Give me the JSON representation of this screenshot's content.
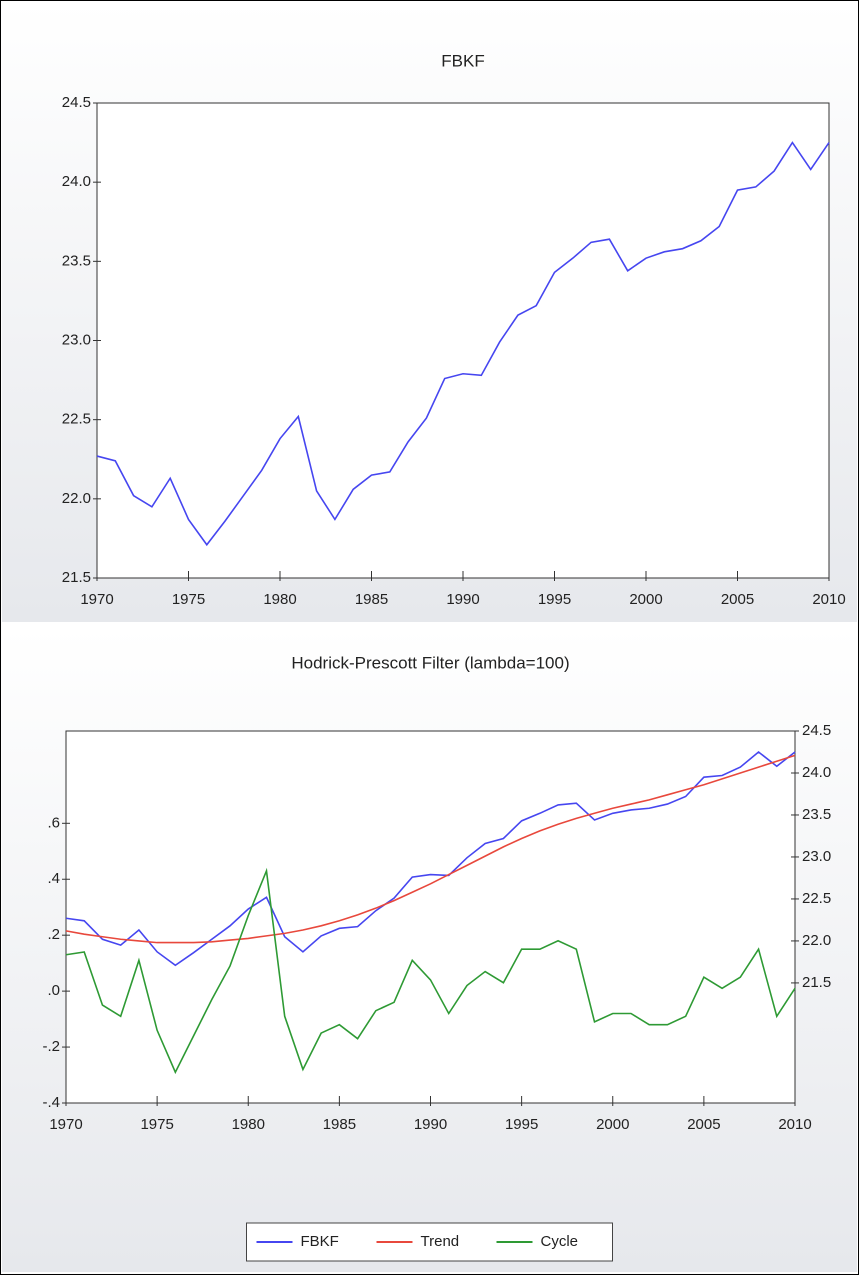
{
  "chart_data": [
    {
      "type": "line",
      "title": "FBKF",
      "x": [
        1970,
        1971,
        1972,
        1973,
        1974,
        1975,
        1976,
        1977,
        1978,
        1979,
        1980,
        1981,
        1982,
        1983,
        1984,
        1985,
        1986,
        1987,
        1988,
        1989,
        1990,
        1991,
        1992,
        1993,
        1994,
        1995,
        1996,
        1997,
        1998,
        1999,
        2000,
        2001,
        2002,
        2003,
        2004,
        2005,
        2006,
        2007,
        2008,
        2009,
        2010
      ],
      "series": [
        {
          "name": "FBKF",
          "color": "#4646f0",
          "values": [
            22.27,
            22.24,
            22.02,
            21.95,
            22.13,
            21.87,
            21.71,
            21.86,
            22.02,
            22.18,
            22.38,
            22.52,
            22.05,
            21.87,
            22.06,
            22.15,
            22.17,
            22.36,
            22.51,
            22.76,
            22.79,
            22.78,
            22.99,
            23.16,
            23.22,
            23.43,
            23.52,
            23.62,
            23.64,
            23.44,
            23.52,
            23.56,
            23.58,
            23.63,
            23.72,
            23.95,
            23.97,
            24.07,
            24.25,
            24.08,
            24.25
          ]
        }
      ],
      "xlim": [
        1970,
        2010
      ],
      "xticks": [
        1970,
        1975,
        1980,
        1985,
        1990,
        1995,
        2000,
        2005,
        2010
      ],
      "ylim": [
        21.5,
        24.5
      ],
      "yticks": [
        21.5,
        {
          "value": 22,
          "label": "22.0"
        },
        22.5,
        {
          "value": 23,
          "label": "23.0"
        },
        23.5,
        {
          "value": 24,
          "label": "24.0"
        },
        24.5
      ]
    },
    {
      "type": "line",
      "title": "Hodrick-Prescott Filter (lambda=100)",
      "x": [
        1970,
        1971,
        1972,
        1973,
        1974,
        1975,
        1976,
        1977,
        1978,
        1979,
        1980,
        1981,
        1982,
        1983,
        1984,
        1985,
        1986,
        1987,
        1988,
        1989,
        1990,
        1991,
        1992,
        1993,
        1994,
        1995,
        1996,
        1997,
        1998,
        1999,
        2000,
        2001,
        2002,
        2003,
        2004,
        2005,
        2006,
        2007,
        2008,
        2009,
        2010
      ],
      "series": [
        {
          "name": "FBKF",
          "color": "#4646f0",
          "axis": "y2",
          "values": [
            22.27,
            22.24,
            22.02,
            21.95,
            22.13,
            21.87,
            21.71,
            21.86,
            22.02,
            22.18,
            22.38,
            22.52,
            22.05,
            21.87,
            22.06,
            22.15,
            22.17,
            22.36,
            22.51,
            22.76,
            22.79,
            22.78,
            22.99,
            23.16,
            23.22,
            23.43,
            23.52,
            23.62,
            23.64,
            23.44,
            23.52,
            23.56,
            23.58,
            23.63,
            23.72,
            23.95,
            23.97,
            24.07,
            24.25,
            24.08,
            24.25
          ]
        },
        {
          "name": "Trend",
          "color": "#e8483c",
          "axis": "y2",
          "values": [
            22.12,
            22.08,
            22.05,
            22.02,
            22.0,
            21.98,
            21.98,
            21.98,
            21.99,
            22.01,
            22.03,
            22.06,
            22.09,
            22.13,
            22.18,
            22.24,
            22.31,
            22.39,
            22.48,
            22.58,
            22.68,
            22.79,
            22.9,
            23.01,
            23.12,
            23.22,
            23.31,
            23.39,
            23.46,
            23.52,
            23.58,
            23.63,
            23.68,
            23.74,
            23.8,
            23.86,
            23.93,
            24.0,
            24.07,
            24.14,
            24.21
          ]
        },
        {
          "name": "Cycle",
          "color": "#2e9a34",
          "values": [
            0.13,
            0.14,
            -0.05,
            -0.09,
            0.11,
            -0.14,
            -0.29,
            -0.16,
            -0.03,
            0.09,
            0.27,
            0.43,
            -0.09,
            -0.28,
            -0.15,
            -0.12,
            -0.17,
            -0.07,
            -0.04,
            0.11,
            0.04,
            -0.08,
            0.02,
            0.07,
            0.03,
            0.15,
            0.15,
            0.18,
            0.15,
            -0.11,
            -0.08,
            -0.08,
            -0.12,
            -0.12,
            -0.09,
            0.05,
            0.01,
            0.05,
            0.15,
            -0.09,
            0.01
          ]
        }
      ],
      "xlim": [
        1970,
        2010
      ],
      "xticks": [
        1970,
        1975,
        1980,
        1985,
        1990,
        1995,
        2000,
        2005,
        2010
      ],
      "ylim": [
        -0.4,
        0.93
      ],
      "yticks": [
        {
          "value": -0.4,
          "label": "-.4"
        },
        {
          "value": -0.2,
          "label": "-.2"
        },
        {
          "value": 0,
          "label": ".0"
        },
        {
          "value": 0.2,
          "label": ".2"
        },
        {
          "value": 0.4,
          "label": ".4"
        },
        {
          "value": 0.6,
          "label": ".6"
        }
      ],
      "y2lim": [
        20.07,
        24.5
      ],
      "y2ticks": [
        21.5,
        {
          "value": 22,
          "label": "22.0"
        },
        22.5,
        {
          "value": 23,
          "label": "23.0"
        },
        23.5,
        {
          "value": 24,
          "label": "24.0"
        },
        24.5
      ],
      "legend": "bottom"
    }
  ]
}
